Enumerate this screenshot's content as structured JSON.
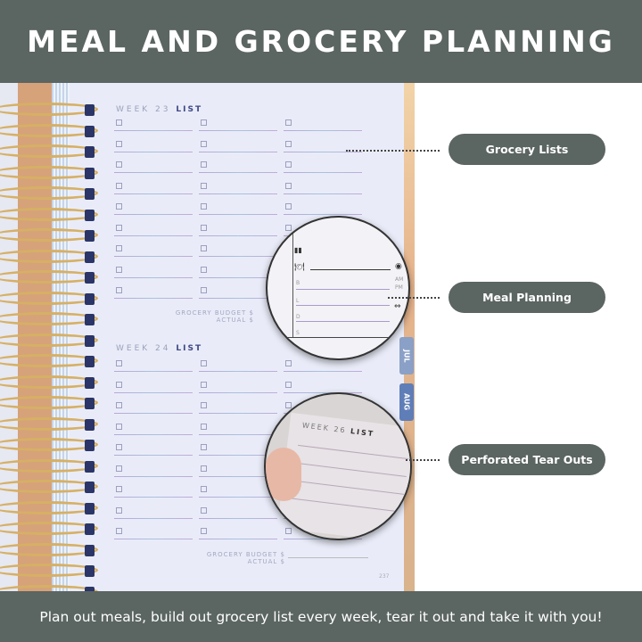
{
  "header": {
    "title": "MEAL AND GROCERY PLANNING"
  },
  "footer": {
    "text": "Plan out meals, build out grocery list every week, tear it out and take it with you!"
  },
  "planner": {
    "week23": {
      "week": "WEEK 23",
      "list": "LIST"
    },
    "week24": {
      "week": "WEEK 24",
      "list": "LIST"
    },
    "budget_label": "GROCERY BUDGET $",
    "actual_label": "ACTUAL $",
    "page_number": "237",
    "tabs": [
      {
        "label": "JUL",
        "color": "#8aa0c6"
      },
      {
        "label": "AUG",
        "color": "#5f7eb8"
      }
    ]
  },
  "meal_zoom": {
    "meals": [
      "B",
      "L",
      "D",
      "S"
    ],
    "am": "AM",
    "pm": "PM",
    "icons": [
      "book-icon",
      "utensils-icon",
      "clock-icon",
      "dumbbell-icon",
      "bolt-icon"
    ]
  },
  "tearout_zoom": {
    "week": "WEEK 26",
    "list": "LIST"
  },
  "callouts": [
    {
      "label": "Grocery Lists"
    },
    {
      "label": "Meal Planning"
    },
    {
      "label": "Perforated Tear Outs"
    }
  ],
  "colors": {
    "banner": "#5b6562",
    "accent": "#3f4884"
  }
}
